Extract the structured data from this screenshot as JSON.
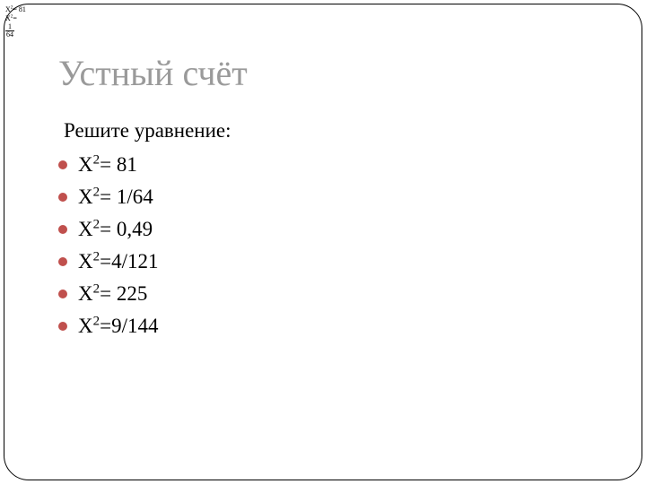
{
  "corner": {
    "line1_base": "X",
    "line1_sup": "2",
    "line1_rest": "= 81",
    "line2_base": "X",
    "line2_sup": "2",
    "line2_rest": "=",
    "frac_num": "1",
    "frac_den": "64"
  },
  "title": "Устный счёт",
  "prompt": "Решите уравнение:",
  "equations": [
    {
      "base": "X",
      "sup": "2",
      "rest": "= 81"
    },
    {
      "base": "X",
      "sup": "2",
      "rest": "= 1/64"
    },
    {
      "base": "X",
      "sup": "2",
      "rest": "= 0,49"
    },
    {
      "base": "X",
      "sup": "2",
      "rest": "=4/121"
    },
    {
      "base": "X",
      "sup": "2",
      "rest": "= 225"
    },
    {
      "base": "X",
      "sup": "2",
      "rest": "=9/144"
    }
  ],
  "style": {
    "bullet_color": "#c0504d",
    "title_color": "#9a9a9a",
    "text_color": "#000000",
    "background": "#ffffff",
    "frame_border": "#000000",
    "title_fontsize": 40,
    "body_fontsize": 23
  }
}
